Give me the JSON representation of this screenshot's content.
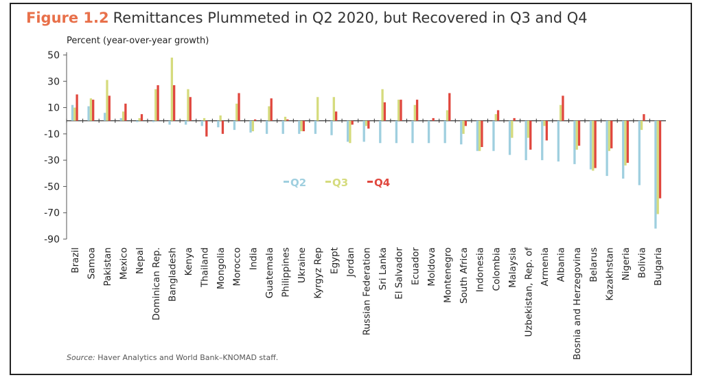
{
  "figure": {
    "label": "Figure 1.2",
    "title": "Remittances Plummeted in Q2 2020, but Recovered in Q3 and Q4",
    "source_label": "Source:",
    "source_text": "Haver Analytics and World Bank–KNOMAD staff."
  },
  "chart_data": {
    "type": "bar",
    "ylabel": "Percent (year-over-year growth)",
    "ylim": [
      -90,
      50
    ],
    "yticks": [
      50,
      30,
      10,
      -10,
      -30,
      -50,
      -70,
      -90
    ],
    "legend_placement": "center",
    "categories": [
      "Brazil",
      "Samoa",
      "Pakistan",
      "Mexico",
      "Nepal",
      "Dominican Rep.",
      "Bangladesh",
      "Kenya",
      "Thailand",
      "Mongolia",
      "Morocco",
      "India",
      "Guatemala",
      "Philippines",
      "Ukraine",
      "Kyrgyz Rep",
      "Egypt",
      "Jordan",
      "Russian Federation",
      "Sri Lanka",
      "El Salvador",
      "Ecuador",
      "Moldova",
      "Montenegro",
      "South Africa",
      "Indonesia",
      "Colombia",
      "Malaysia",
      "Uzbekistan, Rep. of",
      "Armenia",
      "Albania",
      "Bosnia and Herzegovina",
      "Belarus",
      "Kazakhstan",
      "Nigeria",
      "Bolivia",
      "Bulgaria"
    ],
    "series": [
      {
        "name": "Q2",
        "color": "#9fcfdf",
        "values": [
          12,
          11,
          6,
          2,
          -1,
          -1,
          -3,
          -3,
          -4,
          -5,
          -7,
          -9,
          -10,
          -10,
          -10,
          -10,
          -11,
          -16,
          -16,
          -17,
          -17,
          -17,
          -17,
          -17,
          -18,
          -23,
          -23,
          -26,
          -30,
          -30,
          -31,
          -33,
          -37,
          -42,
          -44,
          -49,
          -82
        ]
      },
      {
        "name": "Q3",
        "color": "#d5db7d",
        "values": [
          10,
          17,
          31,
          7,
          2,
          24,
          48,
          24,
          2,
          4,
          13,
          -8,
          11,
          3,
          -8,
          18,
          18,
          -17,
          -4,
          24,
          16,
          12,
          null,
          8,
          -10,
          -23,
          5,
          -13,
          -13,
          -4,
          12,
          -22,
          -38,
          -23,
          -34,
          -7,
          -71
        ]
      },
      {
        "name": "Q4",
        "color": "#e0473e",
        "values": [
          20,
          16,
          19,
          13,
          5,
          27,
          27,
          18,
          -12,
          -10,
          21,
          1,
          17,
          1,
          -8,
          null,
          7,
          -3,
          -6,
          14,
          16,
          16,
          2,
          21,
          -4,
          -20,
          8,
          2,
          -22,
          -15,
          19,
          -19,
          -36,
          -21,
          -32,
          5,
          -59
        ]
      }
    ]
  }
}
